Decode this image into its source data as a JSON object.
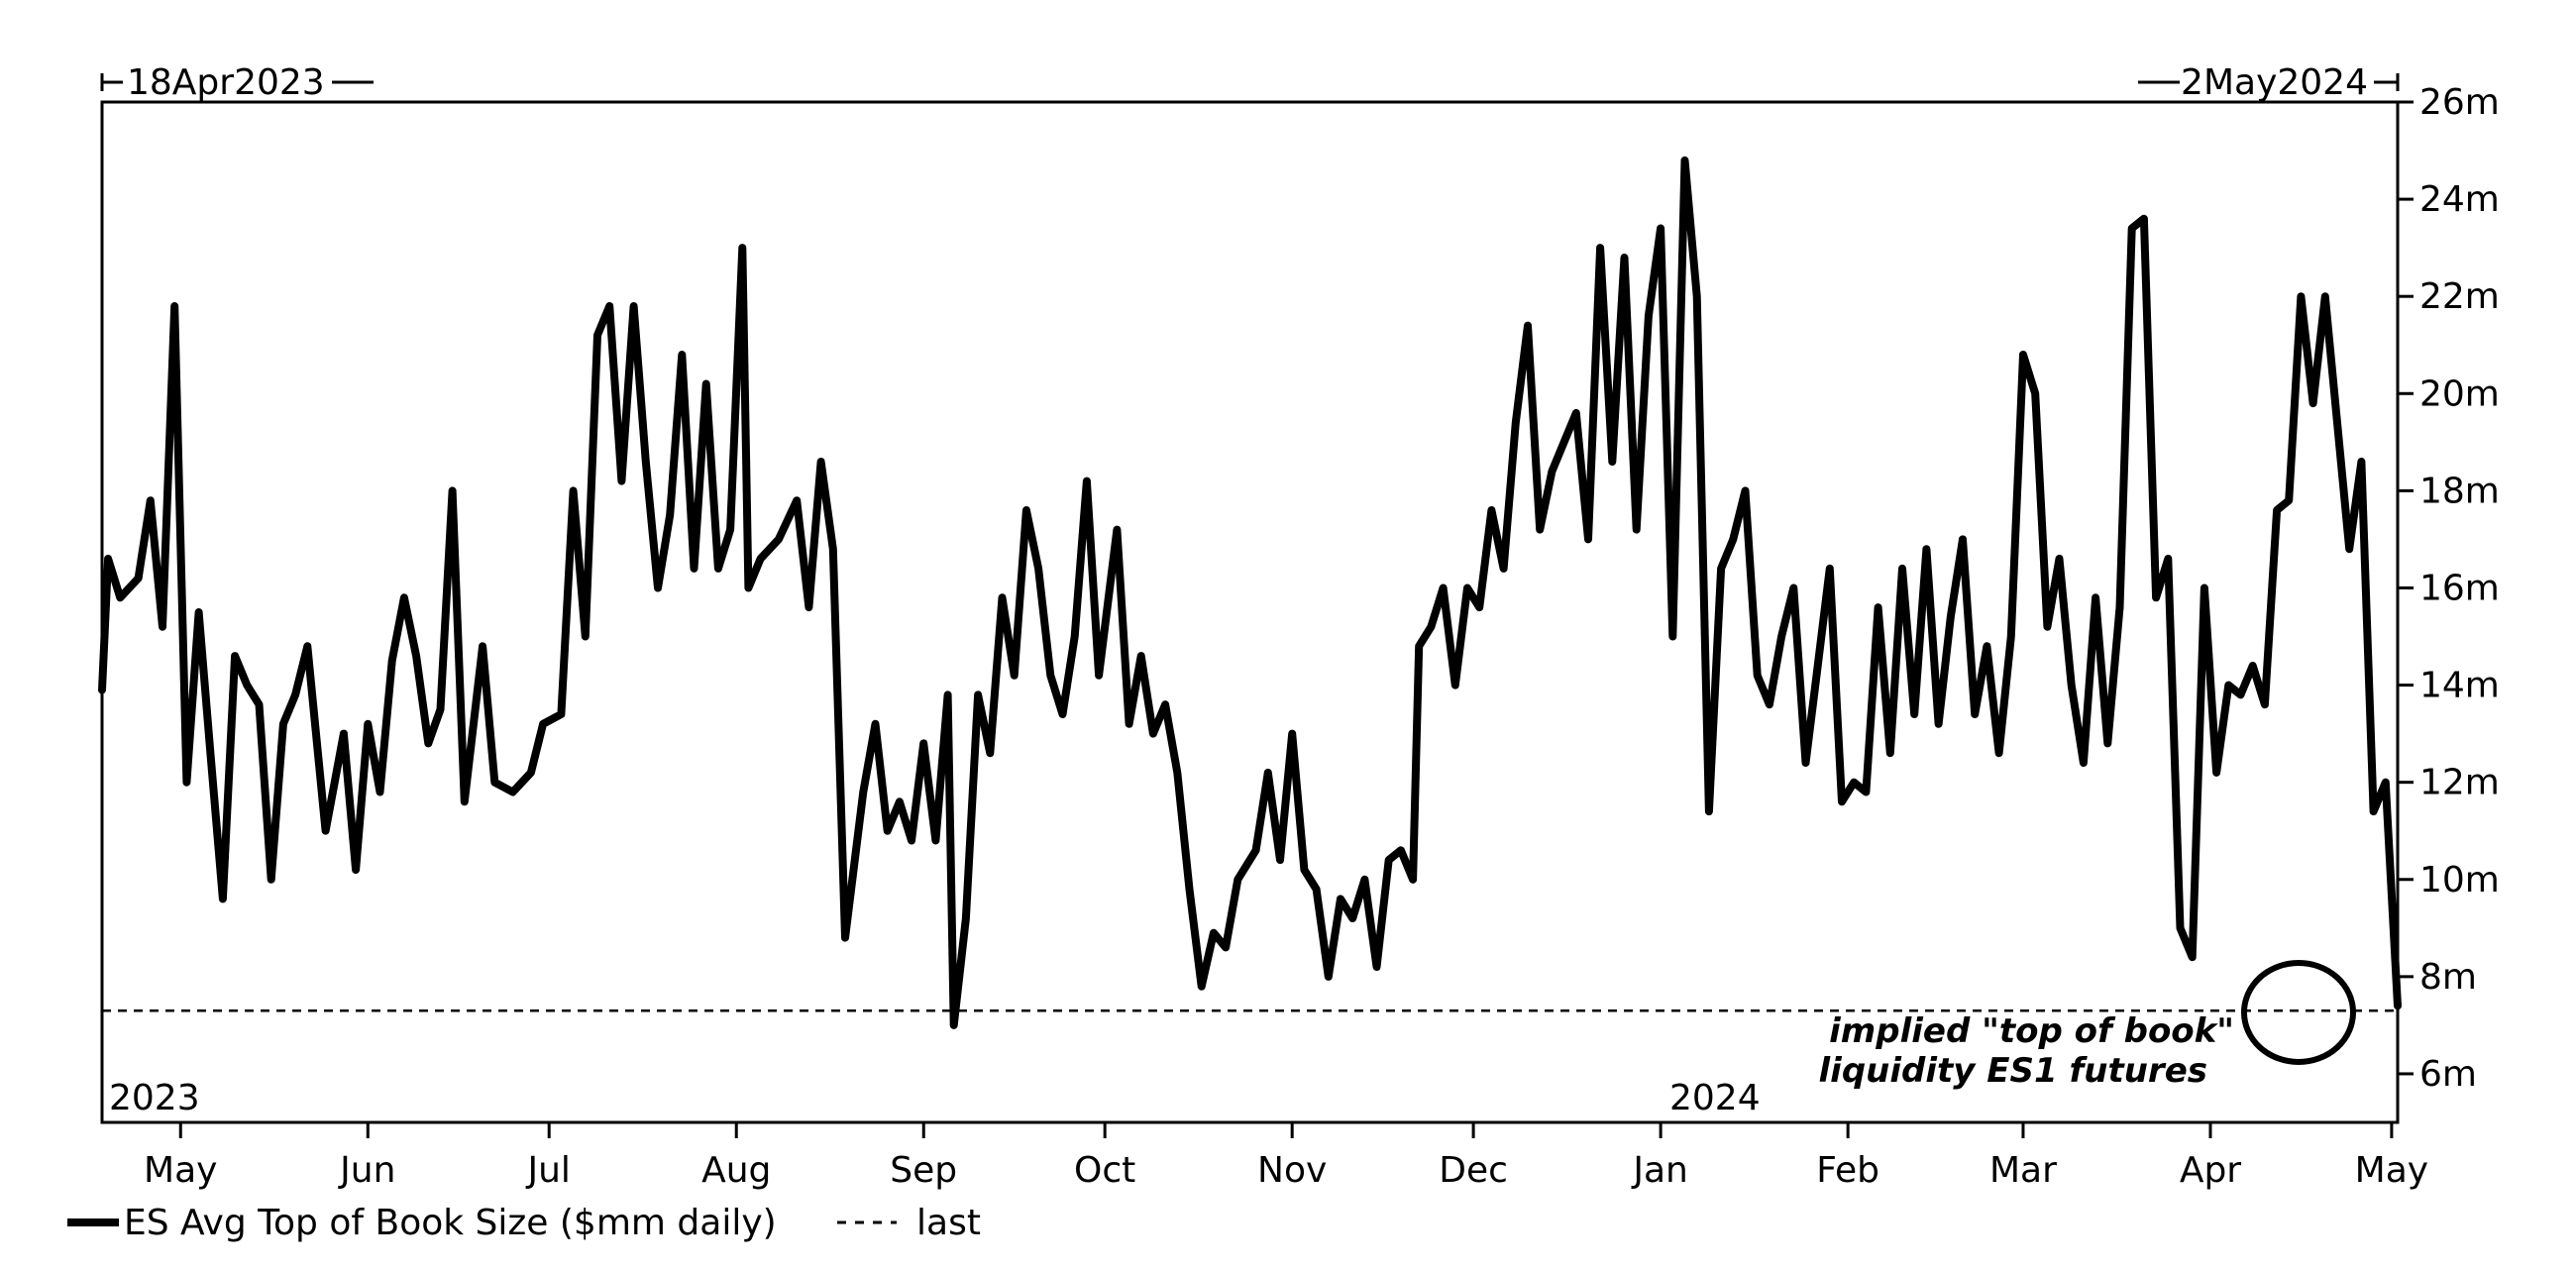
{
  "chart_data": {
    "type": "line",
    "date_range": {
      "start_label": "18Apr2023",
      "end_label": "2May2024"
    },
    "year_labels": [
      "2023",
      "2024"
    ],
    "x_ticks": [
      "May",
      "Jun",
      "Jul",
      "Aug",
      "Sep",
      "Oct",
      "Nov",
      "Dec",
      "Jan",
      "Feb",
      "Mar",
      "Apr",
      "May"
    ],
    "y_ticks": [
      "6m",
      "8m",
      "10m",
      "12m",
      "14m",
      "16m",
      "18m",
      "20m",
      "22m",
      "24m",
      "26m"
    ],
    "ylim": [
      5,
      26
    ],
    "grid": false,
    "y_axis_side": "right",
    "series": [
      {
        "name": "ES Avg Top of Book Size ($mm daily)",
        "color": "#000000",
        "points": [
          [
            "2023-04-18",
            13.9
          ],
          [
            "2023-04-19",
            16.6
          ],
          [
            "2023-04-21",
            15.8
          ],
          [
            "2023-04-24",
            16.2
          ],
          [
            "2023-04-26",
            17.8
          ],
          [
            "2023-04-28",
            15.2
          ],
          [
            "2023-04-30",
            21.8
          ],
          [
            "2023-05-02",
            12.0
          ],
          [
            "2023-05-04",
            15.5
          ],
          [
            "2023-05-06",
            12.5
          ],
          [
            "2023-05-08",
            9.6
          ],
          [
            "2023-05-10",
            14.6
          ],
          [
            "2023-05-12",
            14.0
          ],
          [
            "2023-05-14",
            13.6
          ],
          [
            "2023-05-16",
            10.0
          ],
          [
            "2023-05-18",
            13.2
          ],
          [
            "2023-05-20",
            13.8
          ],
          [
            "2023-05-22",
            14.8
          ],
          [
            "2023-05-25",
            11.0
          ],
          [
            "2023-05-28",
            13.0
          ],
          [
            "2023-05-30",
            10.2
          ],
          [
            "2023-06-01",
            13.2
          ],
          [
            "2023-06-03",
            11.8
          ],
          [
            "2023-06-05",
            14.5
          ],
          [
            "2023-06-07",
            15.8
          ],
          [
            "2023-06-09",
            14.6
          ],
          [
            "2023-06-11",
            12.8
          ],
          [
            "2023-06-13",
            13.5
          ],
          [
            "2023-06-15",
            18.0
          ],
          [
            "2023-06-17",
            11.6
          ],
          [
            "2023-06-20",
            14.8
          ],
          [
            "2023-06-22",
            12.0
          ],
          [
            "2023-06-25",
            11.8
          ],
          [
            "2023-06-28",
            12.2
          ],
          [
            "2023-06-30",
            13.2
          ],
          [
            "2023-07-03",
            13.4
          ],
          [
            "2023-07-05",
            18.0
          ],
          [
            "2023-07-07",
            15.0
          ],
          [
            "2023-07-09",
            21.2
          ],
          [
            "2023-07-11",
            21.8
          ],
          [
            "2023-07-13",
            18.2
          ],
          [
            "2023-07-15",
            21.8
          ],
          [
            "2023-07-17",
            18.6
          ],
          [
            "2023-07-19",
            16.0
          ],
          [
            "2023-07-21",
            17.5
          ],
          [
            "2023-07-23",
            20.8
          ],
          [
            "2023-07-25",
            16.4
          ],
          [
            "2023-07-27",
            20.2
          ],
          [
            "2023-07-29",
            16.4
          ],
          [
            "2023-07-31",
            17.2
          ],
          [
            "2023-08-02",
            23.0
          ],
          [
            "2023-08-03",
            16.0
          ],
          [
            "2023-08-05",
            16.6
          ],
          [
            "2023-08-08",
            17.0
          ],
          [
            "2023-08-11",
            17.8
          ],
          [
            "2023-08-13",
            15.6
          ],
          [
            "2023-08-15",
            18.6
          ],
          [
            "2023-08-17",
            16.8
          ],
          [
            "2023-08-19",
            8.8
          ],
          [
            "2023-08-22",
            11.8
          ],
          [
            "2023-08-24",
            13.2
          ],
          [
            "2023-08-26",
            11.0
          ],
          [
            "2023-08-28",
            11.6
          ],
          [
            "2023-08-30",
            10.8
          ],
          [
            "2023-09-01",
            12.8
          ],
          [
            "2023-09-03",
            10.8
          ],
          [
            "2023-09-05",
            13.8
          ],
          [
            "2023-09-06",
            7.0
          ],
          [
            "2023-09-08",
            9.2
          ],
          [
            "2023-09-10",
            13.8
          ],
          [
            "2023-09-12",
            12.6
          ],
          [
            "2023-09-14",
            15.8
          ],
          [
            "2023-09-16",
            14.2
          ],
          [
            "2023-09-18",
            17.6
          ],
          [
            "2023-09-20",
            16.4
          ],
          [
            "2023-09-22",
            14.2
          ],
          [
            "2023-09-24",
            13.4
          ],
          [
            "2023-09-26",
            15.0
          ],
          [
            "2023-09-28",
            18.2
          ],
          [
            "2023-09-30",
            14.2
          ],
          [
            "2023-10-03",
            17.2
          ],
          [
            "2023-10-05",
            13.2
          ],
          [
            "2023-10-07",
            14.6
          ],
          [
            "2023-10-09",
            13.0
          ],
          [
            "2023-10-11",
            13.6
          ],
          [
            "2023-10-13",
            12.2
          ],
          [
            "2023-10-15",
            9.8
          ],
          [
            "2023-10-17",
            7.8
          ],
          [
            "2023-10-19",
            8.9
          ],
          [
            "2023-10-21",
            8.6
          ],
          [
            "2023-10-23",
            10.0
          ],
          [
            "2023-10-26",
            10.6
          ],
          [
            "2023-10-28",
            12.2
          ],
          [
            "2023-10-30",
            10.4
          ],
          [
            "2023-11-01",
            13.0
          ],
          [
            "2023-11-03",
            10.2
          ],
          [
            "2023-11-05",
            9.8
          ],
          [
            "2023-11-07",
            8.0
          ],
          [
            "2023-11-09",
            9.6
          ],
          [
            "2023-11-11",
            9.2
          ],
          [
            "2023-11-13",
            10.0
          ],
          [
            "2023-11-15",
            8.2
          ],
          [
            "2023-11-17",
            10.4
          ],
          [
            "2023-11-19",
            10.6
          ],
          [
            "2023-11-21",
            10.0
          ],
          [
            "2023-11-22",
            14.8
          ],
          [
            "2023-11-24",
            15.2
          ],
          [
            "2023-11-26",
            16.0
          ],
          [
            "2023-11-28",
            14.0
          ],
          [
            "2023-11-30",
            16.0
          ],
          [
            "2023-12-02",
            15.6
          ],
          [
            "2023-12-04",
            17.6
          ],
          [
            "2023-12-06",
            16.4
          ],
          [
            "2023-12-08",
            19.4
          ],
          [
            "2023-12-10",
            21.4
          ],
          [
            "2023-12-12",
            17.2
          ],
          [
            "2023-12-14",
            18.4
          ],
          [
            "2023-12-16",
            19.0
          ],
          [
            "2023-12-18",
            19.6
          ],
          [
            "2023-12-20",
            17.0
          ],
          [
            "2023-12-22",
            23.0
          ],
          [
            "2023-12-24",
            18.6
          ],
          [
            "2023-12-26",
            22.8
          ],
          [
            "2023-12-28",
            17.2
          ],
          [
            "2023-12-30",
            21.6
          ],
          [
            "2024-01-01",
            23.4
          ],
          [
            "2024-01-03",
            15.0
          ],
          [
            "2024-01-05",
            24.8
          ],
          [
            "2024-01-07",
            22.0
          ],
          [
            "2024-01-09",
            11.4
          ],
          [
            "2024-01-11",
            16.4
          ],
          [
            "2024-01-13",
            17.0
          ],
          [
            "2024-01-15",
            18.0
          ],
          [
            "2024-01-17",
            14.2
          ],
          [
            "2024-01-19",
            13.6
          ],
          [
            "2024-01-21",
            15.0
          ],
          [
            "2024-01-23",
            16.0
          ],
          [
            "2024-01-25",
            12.4
          ],
          [
            "2024-01-27",
            14.4
          ],
          [
            "2024-01-29",
            16.4
          ],
          [
            "2024-01-31",
            11.6
          ],
          [
            "2024-02-02",
            12.0
          ],
          [
            "2024-02-04",
            11.8
          ],
          [
            "2024-02-06",
            15.6
          ],
          [
            "2024-02-08",
            12.6
          ],
          [
            "2024-02-10",
            16.4
          ],
          [
            "2024-02-12",
            13.4
          ],
          [
            "2024-02-14",
            16.8
          ],
          [
            "2024-02-16",
            13.2
          ],
          [
            "2024-02-18",
            15.4
          ],
          [
            "2024-02-20",
            17.0
          ],
          [
            "2024-02-22",
            13.4
          ],
          [
            "2024-02-24",
            14.8
          ],
          [
            "2024-02-26",
            12.6
          ],
          [
            "2024-02-28",
            15.0
          ],
          [
            "2024-03-01",
            20.8
          ],
          [
            "2024-03-03",
            20.0
          ],
          [
            "2024-03-05",
            15.2
          ],
          [
            "2024-03-07",
            16.6
          ],
          [
            "2024-03-09",
            14.0
          ],
          [
            "2024-03-11",
            12.4
          ],
          [
            "2024-03-13",
            15.8
          ],
          [
            "2024-03-15",
            12.8
          ],
          [
            "2024-03-17",
            15.6
          ],
          [
            "2024-03-19",
            23.4
          ],
          [
            "2024-03-21",
            23.6
          ],
          [
            "2024-03-23",
            15.8
          ],
          [
            "2024-03-25",
            16.6
          ],
          [
            "2024-03-27",
            9.0
          ],
          [
            "2024-03-29",
            8.4
          ],
          [
            "2024-03-31",
            16.0
          ],
          [
            "2024-04-02",
            12.2
          ],
          [
            "2024-04-04",
            14.0
          ],
          [
            "2024-04-06",
            13.8
          ],
          [
            "2024-04-08",
            14.4
          ],
          [
            "2024-04-10",
            13.6
          ],
          [
            "2024-04-12",
            17.6
          ],
          [
            "2024-04-14",
            17.8
          ],
          [
            "2024-04-16",
            22.0
          ],
          [
            "2024-04-18",
            19.8
          ],
          [
            "2024-04-20",
            22.0
          ],
          [
            "2024-04-22",
            19.4
          ],
          [
            "2024-04-24",
            16.8
          ],
          [
            "2024-04-26",
            18.6
          ],
          [
            "2024-04-28",
            11.4
          ],
          [
            "2024-04-30",
            12.0
          ],
          [
            "2024-05-02",
            7.4
          ]
        ]
      }
    ],
    "reference_line": {
      "name": "last",
      "value": 7.3,
      "style": "dashed"
    },
    "annotation": {
      "lines": [
        "implied \"top of book\"",
        "liquidity ES1 futures"
      ]
    },
    "legend": {
      "placement": "bottom-left"
    }
  }
}
